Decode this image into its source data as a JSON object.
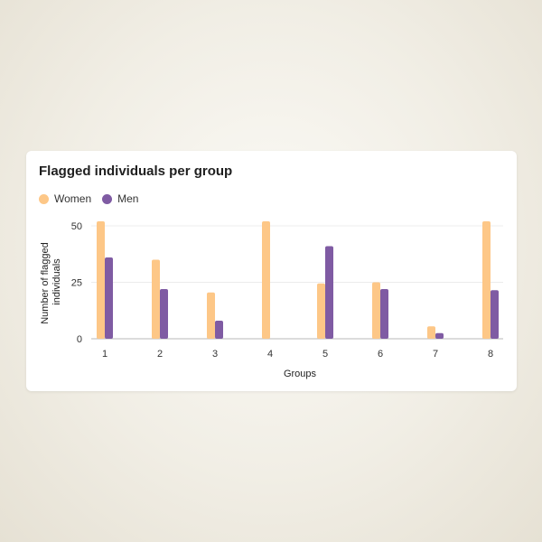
{
  "colors": {
    "women": "#fdc787",
    "men": "#7f5ba3",
    "grid": "#ececec",
    "axis": "#b9b9b9"
  },
  "chart_data": {
    "type": "bar",
    "title": "Flagged individuals per group",
    "xlabel": "Groups",
    "ylabel": "Number of flagged individuals",
    "ylabel_lines": [
      "Number of flagged",
      "individuals"
    ],
    "categories": [
      "1",
      "2",
      "3",
      "4",
      "5",
      "6",
      "7",
      "8"
    ],
    "yticks": [
      "0",
      "25",
      "50"
    ],
    "ylim": [
      0,
      50
    ],
    "grid": true,
    "legend_position": "top-left",
    "series": [
      {
        "name": "Women",
        "values": [
          52,
          35,
          20.5,
          52,
          24.5,
          25,
          5.5,
          52
        ]
      },
      {
        "name": "Men",
        "values": [
          36,
          22,
          8,
          0,
          41,
          22,
          2.5,
          21.5
        ]
      }
    ]
  }
}
